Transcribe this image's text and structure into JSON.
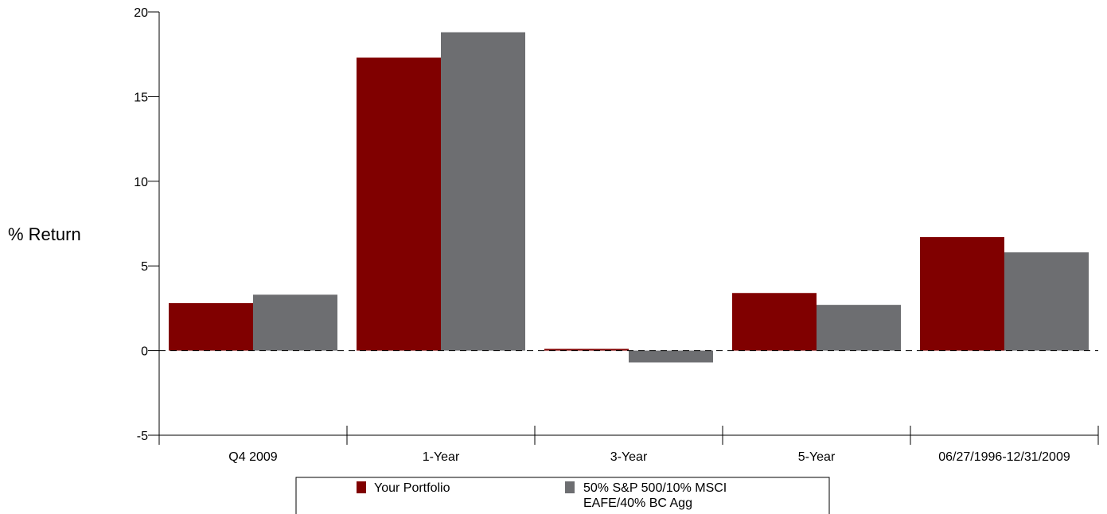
{
  "chart_data": {
    "type": "bar",
    "ylabel": "% Return",
    "xlabel": "",
    "ylim": [
      -5,
      20
    ],
    "yticks": [
      -5,
      0,
      5,
      10,
      15,
      20
    ],
    "categories": [
      "Q4 2009",
      "1-Year",
      "3-Year",
      "5-Year",
      "06/27/1996-12/31/2009"
    ],
    "series": [
      {
        "name": "Your Portfolio",
        "color": "#800000",
        "values": [
          2.8,
          17.3,
          0.1,
          3.4,
          6.7
        ]
      },
      {
        "name": "50% S&P 500/10% MSCI EAFE/40% BC Agg",
        "color": "#6d6e71",
        "values": [
          3.3,
          18.8,
          -0.7,
          2.7,
          5.8
        ]
      }
    ],
    "legend": {
      "position": "bottom",
      "items": [
        {
          "lines": [
            "Your Portfolio"
          ]
        },
        {
          "lines": [
            "50% S&P 500/10% MSCI",
            "EAFE/40% BC Agg"
          ]
        }
      ]
    },
    "zero_line": "dashed"
  }
}
